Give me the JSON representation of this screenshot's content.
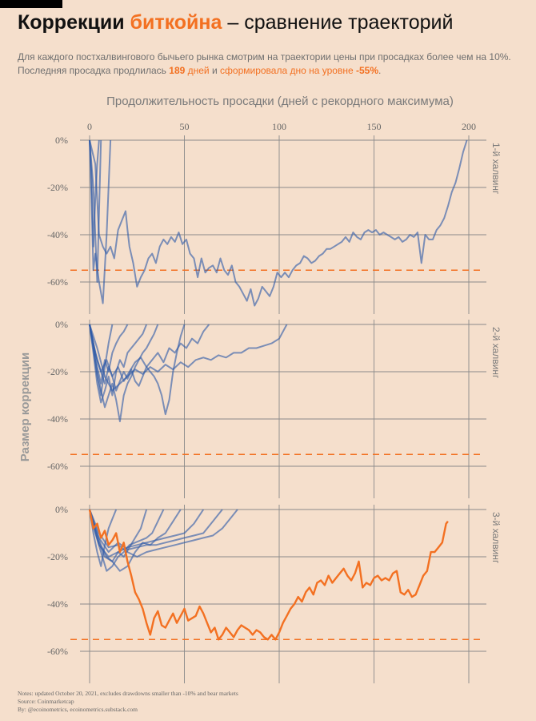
{
  "header": {
    "title_part1": "Коррекции",
    "title_accent": "биткойна",
    "title_part2": "– сравнение траекторий",
    "subtitle_line1": "Для каждого постхалвингового бычьего рынка смотрим на траектории цены при просадках более чем на 10%.",
    "subtitle_line2_a": "Последняя просадка продлилась ",
    "subtitle_line2_days_num": "189",
    "subtitle_line2_days_word": " дней",
    "subtitle_line2_b": " и ",
    "subtitle_line2_c": "сформировала дно на уровне ",
    "subtitle_line2_d": "-55%",
    "subtitle_line2_e": "."
  },
  "footer": {
    "notes": "Notes: updated October 20, 2021, excludes drawdowns smaller than -10% and bear markets",
    "source": "Source: Coinmarketcap",
    "by": "By: @ecoinometrics, ecoinometrics.substack.com"
  },
  "colors": {
    "background": "#f5dfcc",
    "series_blue": "#2f5aa8",
    "series_orange": "#f37021",
    "reference_line": "#f37021",
    "grid": "#8a8a8a",
    "text_gray": "#7a7a7a"
  },
  "chart_data": {
    "type": "line",
    "title": "",
    "xlabel": "Продолжительность просадки (дней с рекордного максимума)",
    "ylabel": "Размер коррекции",
    "x_axis_position": "top",
    "xlim": [
      0,
      200
    ],
    "ylim": [
      -65,
      0
    ],
    "x_ticks": [
      0,
      50,
      100,
      150,
      200
    ],
    "y_ticks": [
      0,
      -20,
      -40,
      -60
    ],
    "y_tick_labels": [
      "0%",
      "-20%",
      "-40%",
      "-60%"
    ],
    "grid": true,
    "reference_line": {
      "y": -55,
      "style": "dashed"
    },
    "panels": [
      {
        "label": "1-й халвинг",
        "series": [
          {
            "x": [
              0,
              1,
              2,
              3,
              4,
              5
            ],
            "y": [
              0,
              -15,
              -45,
              -25,
              -10,
              0
            ]
          },
          {
            "x": [
              0,
              2,
              4,
              6
            ],
            "y": [
              0,
              -20,
              -60,
              0
            ]
          },
          {
            "x": [
              0,
              1,
              2,
              3,
              5,
              7,
              9,
              11
            ],
            "y": [
              0,
              -25,
              -55,
              -48,
              -60,
              -69,
              -40,
              0
            ]
          },
          {
            "x": [
              0,
              3,
              5,
              7,
              9,
              11,
              13,
              15,
              17,
              19,
              20,
              21,
              23,
              25,
              27,
              29,
              31,
              33,
              35,
              37,
              39,
              41,
              43,
              45,
              47,
              49,
              51,
              53,
              55,
              57,
              59,
              61,
              63,
              65,
              67,
              69,
              71,
              73,
              75,
              77,
              79,
              81,
              83,
              85,
              87,
              89,
              91,
              93,
              95,
              97,
              99,
              101,
              103,
              105,
              107,
              109,
              111,
              113,
              115,
              117,
              119,
              121,
              123,
              125,
              127,
              129,
              131,
              133,
              135,
              137,
              139,
              141,
              143,
              145,
              147,
              149,
              151,
              153,
              155,
              157,
              159,
              161,
              163,
              165,
              167,
              169,
              171,
              173,
              175,
              177,
              179,
              181,
              183,
              185,
              187,
              189,
              191,
              193,
              195,
              197,
              199
            ],
            "y": [
              0,
              -10,
              -40,
              -45,
              -48,
              -45,
              -50,
              -38,
              -34,
              -30,
              -38,
              -45,
              -52,
              -62,
              -58,
              -55,
              -50,
              -48,
              -52,
              -45,
              -42,
              -44,
              -41,
              -43,
              -39,
              -44,
              -42,
              -48,
              -50,
              -58,
              -50,
              -56,
              -54,
              -53,
              -56,
              -50,
              -55,
              -57,
              -53,
              -60,
              -62,
              -65,
              -68,
              -63,
              -70,
              -67,
              -62,
              -64,
              -66,
              -62,
              -56,
              -58,
              -56,
              -58,
              -55,
              -53,
              -52,
              -49,
              -50,
              -52,
              -51,
              -49,
              -48,
              -46,
              -46,
              -45,
              -44,
              -43,
              -41,
              -43,
              -39,
              -41,
              -42,
              -39,
              -38,
              -39,
              -38,
              -40,
              -39,
              -40,
              -41,
              -42,
              -41,
              -43,
              -42,
              -40,
              -41,
              -39,
              -52,
              -40,
              -42,
              -42,
              -38,
              -36,
              -33,
              -28,
              -22,
              -18,
              -12,
              -5,
              0
            ]
          }
        ]
      },
      {
        "label": "2-й халвинг",
        "series": [
          {
            "x": [
              0,
              2,
              4,
              6,
              8,
              10,
              12
            ],
            "y": [
              0,
              -10,
              -22,
              -30,
              -18,
              -8,
              0
            ]
          },
          {
            "x": [
              0,
              2,
              4,
              6,
              8,
              10,
              12,
              14,
              16,
              18,
              20
            ],
            "y": [
              0,
              -8,
              -18,
              -25,
              -15,
              -20,
              -12,
              -8,
              -5,
              -3,
              0
            ]
          },
          {
            "x": [
              0,
              2,
              4,
              6,
              8,
              10,
              12,
              14,
              16,
              18,
              20,
              22,
              24,
              26,
              28,
              30
            ],
            "y": [
              0,
              -12,
              -25,
              -33,
              -28,
              -22,
              -30,
              -20,
              -15,
              -18,
              -12,
              -10,
              -8,
              -6,
              -4,
              0
            ]
          },
          {
            "x": [
              0,
              2,
              4,
              6,
              8,
              10,
              12,
              14,
              16,
              18,
              20,
              22,
              24,
              26,
              28,
              30,
              32,
              34,
              36
            ],
            "y": [
              0,
              -10,
              -20,
              -28,
              -35,
              -30,
              -25,
              -32,
              -41,
              -30,
              -25,
              -22,
              -18,
              -15,
              -12,
              -10,
              -7,
              -4,
              0
            ]
          },
          {
            "x": [
              0,
              2,
              4,
              6,
              8,
              10,
              12,
              14,
              16,
              18,
              20,
              22,
              24,
              26,
              28,
              30,
              32,
              34,
              36,
              38,
              40,
              42,
              44,
              46,
              48,
              50
            ],
            "y": [
              0,
              -8,
              -15,
              -20,
              -25,
              -18,
              -22,
              -28,
              -24,
              -20,
              -23,
              -19,
              -24,
              -26,
              -22,
              -18,
              -20,
              -22,
              -25,
              -30,
              -38,
              -32,
              -20,
              -12,
              -5,
              0
            ]
          },
          {
            "x": [
              0,
              3,
              6,
              9,
              12,
              15,
              18,
              21,
              24,
              27,
              30,
              33,
              36,
              39,
              42,
              45,
              48,
              51,
              54,
              57,
              60,
              63
            ],
            "y": [
              0,
              -12,
              -20,
              -15,
              -22,
              -18,
              -24,
              -20,
              -16,
              -14,
              -18,
              -15,
              -12,
              -16,
              -10,
              -12,
              -8,
              -10,
              -6,
              -8,
              -3,
              0
            ]
          },
          {
            "x": [
              0,
              4,
              8,
              12,
              16,
              20,
              24,
              28,
              32,
              36,
              40,
              44,
              48,
              52,
              56,
              60,
              64,
              68,
              72,
              76,
              80,
              84,
              88,
              92,
              96,
              100,
              104
            ],
            "y": [
              0,
              -10,
              -22,
              -28,
              -25,
              -22,
              -19,
              -21,
              -18,
              -20,
              -17,
              -19,
              -16,
              -18,
              -15,
              -14,
              -15,
              -13,
              -14,
              -12,
              -12,
              -10,
              -10,
              -9,
              -8,
              -6,
              0
            ]
          }
        ]
      },
      {
        "label": "3-й халвинг",
        "series": [
          {
            "x": [
              0,
              2,
              4,
              6,
              8,
              10,
              12,
              14
            ],
            "y": [
              0,
              -10,
              -18,
              -24,
              -15,
              -8,
              -4,
              0
            ]
          },
          {
            "x": [
              0,
              3,
              6,
              9,
              12,
              15,
              18,
              21,
              24,
              27,
              30
            ],
            "y": [
              0,
              -8,
              -15,
              -20,
              -22,
              -18,
              -20,
              -16,
              -12,
              -8,
              0
            ]
          },
          {
            "x": [
              0,
              3,
              6,
              9,
              12,
              15,
              18,
              21,
              24,
              27,
              30,
              33,
              36,
              39
            ],
            "y": [
              0,
              -10,
              -18,
              -26,
              -24,
              -20,
              -18,
              -15,
              -14,
              -13,
              -12,
              -10,
              -5,
              0
            ]
          },
          {
            "x": [
              0,
              4,
              8,
              12,
              16,
              20,
              24,
              28,
              32,
              36,
              40,
              44,
              48
            ],
            "y": [
              0,
              -12,
              -20,
              -22,
              -26,
              -24,
              -18,
              -14,
              -15,
              -12,
              -10,
              -5,
              0
            ]
          },
          {
            "x": [
              0,
              5,
              10,
              15,
              20,
              25,
              30,
              35,
              40,
              45,
              50,
              55,
              60
            ],
            "y": [
              0,
              -15,
              -20,
              -18,
              -16,
              -15,
              -14,
              -13,
              -12,
              -11,
              -10,
              -6,
              0
            ]
          },
          {
            "x": [
              0,
              5,
              10,
              15,
              20,
              25,
              30,
              35,
              40,
              45,
              50,
              55,
              60,
              65,
              70
            ],
            "y": [
              0,
              -12,
              -18,
              -14,
              -17,
              -16,
              -15,
              -15,
              -14,
              -13,
              -12,
              -11,
              -10,
              -5,
              0
            ]
          },
          {
            "x": [
              0,
              5,
              10,
              15,
              20,
              25,
              30,
              35,
              40,
              45,
              50,
              55,
              60,
              65,
              70,
              75,
              78
            ],
            "y": [
              0,
              -10,
              -16,
              -15,
              -18,
              -20,
              -18,
              -17,
              -16,
              -15,
              -14,
              -13,
              -12,
              -11,
              -8,
              -3,
              0
            ]
          }
        ],
        "highlight": {
          "name": "",
          "x": [
            0,
            2,
            4,
            6,
            8,
            10,
            12,
            14,
            16,
            18,
            20,
            22,
            24,
            26,
            28,
            30,
            32,
            34,
            36,
            38,
            40,
            42,
            44,
            46,
            48,
            50,
            52,
            54,
            56,
            58,
            60,
            62,
            64,
            66,
            68,
            70,
            72,
            74,
            76,
            78,
            80,
            82,
            84,
            86,
            88,
            90,
            92,
            94,
            96,
            98,
            100,
            102,
            104,
            106,
            108,
            110,
            112,
            114,
            116,
            118,
            120,
            122,
            124,
            126,
            128,
            130,
            132,
            134,
            136,
            138,
            140,
            142,
            144,
            146,
            148,
            150,
            152,
            154,
            156,
            158,
            160,
            162,
            164,
            166,
            168,
            170,
            172,
            174,
            176,
            178,
            180,
            182,
            184,
            186,
            188,
            189
          ],
          "y": [
            0,
            -8,
            -6,
            -12,
            -9,
            -15,
            -13,
            -10,
            -18,
            -14,
            -22,
            -28,
            -35,
            -38,
            -42,
            -48,
            -53,
            -46,
            -43,
            -49,
            -50,
            -47,
            -44,
            -48,
            -45,
            -42,
            -47,
            -46,
            -45,
            -41,
            -44,
            -48,
            -52,
            -50,
            -55,
            -53,
            -50,
            -52,
            -54,
            -51,
            -49,
            -50,
            -51,
            -53,
            -51,
            -52,
            -54,
            -55,
            -53,
            -55,
            -52,
            -48,
            -45,
            -42,
            -40,
            -37,
            -39,
            -35,
            -33,
            -36,
            -31,
            -30,
            -32,
            -28,
            -31,
            -29,
            -27,
            -25,
            -28,
            -30,
            -27,
            -22,
            -33,
            -31,
            -32,
            -29,
            -28,
            -30,
            -29,
            -30,
            -27,
            -26,
            -35,
            -36,
            -34,
            -37,
            -36,
            -32,
            -28,
            -26,
            -18,
            -18,
            -16,
            -14,
            -6,
            -5
          ]
        }
      }
    ]
  }
}
